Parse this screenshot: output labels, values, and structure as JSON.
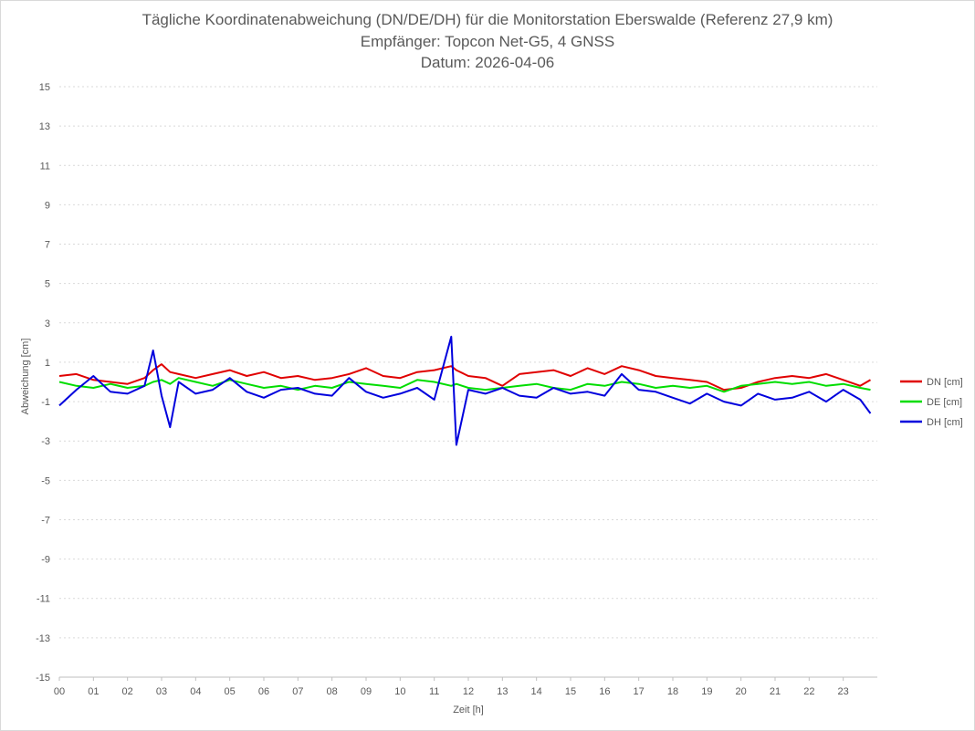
{
  "titles": {
    "line1": "Tägliche Koordinatenabweichung (DN/DE/DH) für die Monitorstation Eberswalde (Referenz 27,9 km)",
    "line2": "Empfänger: Topcon Net-G5, 4 GNSS",
    "line3": "Datum: 2026-04-06"
  },
  "chart_data": {
    "type": "line",
    "title": "Tägliche Koordinatenabweichung (DN/DE/DH) für die Monitorstation Eberswalde (Referenz 27,9 km)",
    "subtitle": [
      "Empfänger: Topcon Net-G5, 4 GNSS",
      "Datum: 2026-04-06"
    ],
    "xlabel": "Zeit [h]",
    "ylabel": "Abweichung [cm]",
    "xlim": [
      0,
      24
    ],
    "ylim": [
      -15,
      15
    ],
    "x_ticks": [
      "00",
      "01",
      "02",
      "03",
      "04",
      "05",
      "06",
      "07",
      "08",
      "09",
      "10",
      "11",
      "12",
      "13",
      "14",
      "15",
      "16",
      "17",
      "18",
      "19",
      "20",
      "21",
      "22",
      "23"
    ],
    "y_ticks": [
      15,
      13,
      11,
      9,
      7,
      5,
      3,
      1,
      -1,
      -3,
      -5,
      -7,
      -9,
      -11,
      -13,
      -15
    ],
    "grid": "horizontal dotted",
    "legend_position": "right",
    "x": [
      0,
      0.5,
      1,
      1.5,
      2,
      2.5,
      2.75,
      3,
      3.25,
      3.5,
      4,
      4.5,
      5,
      5.5,
      6,
      6.5,
      7,
      7.5,
      8,
      8.5,
      9,
      9.5,
      10,
      10.5,
      11,
      11.5,
      11.65,
      12,
      12.5,
      13,
      13.5,
      14,
      14.5,
      15,
      15.5,
      16,
      16.5,
      17,
      17.5,
      18,
      18.5,
      19,
      19.5,
      20,
      20.5,
      21,
      21.5,
      22,
      22.5,
      23,
      23.5,
      23.8
    ],
    "series": [
      {
        "name": "DN [cm]",
        "color": "#e00000",
        "values": [
          0.3,
          0.4,
          0.1,
          0.0,
          -0.1,
          0.2,
          0.6,
          0.9,
          0.5,
          0.4,
          0.2,
          0.4,
          0.6,
          0.3,
          0.5,
          0.2,
          0.3,
          0.1,
          0.2,
          0.4,
          0.7,
          0.3,
          0.2,
          0.5,
          0.6,
          0.8,
          0.6,
          0.3,
          0.2,
          -0.2,
          0.4,
          0.5,
          0.6,
          0.3,
          0.7,
          0.4,
          0.8,
          0.6,
          0.3,
          0.2,
          0.1,
          0.0,
          -0.4,
          -0.3,
          0.0,
          0.2,
          0.3,
          0.2,
          0.4,
          0.1,
          -0.2,
          0.1
        ]
      },
      {
        "name": "DE [cm]",
        "color": "#00dd00",
        "values": [
          0.0,
          -0.2,
          -0.3,
          -0.1,
          -0.3,
          -0.2,
          0.0,
          0.1,
          -0.1,
          0.2,
          0.0,
          -0.2,
          0.1,
          -0.1,
          -0.3,
          -0.2,
          -0.4,
          -0.2,
          -0.3,
          0.0,
          -0.1,
          -0.2,
          -0.3,
          0.1,
          0.0,
          -0.2,
          -0.1,
          -0.3,
          -0.4,
          -0.3,
          -0.2,
          -0.1,
          -0.3,
          -0.4,
          -0.1,
          -0.2,
          0.0,
          -0.1,
          -0.3,
          -0.2,
          -0.3,
          -0.2,
          -0.5,
          -0.2,
          -0.1,
          0.0,
          -0.1,
          0.0,
          -0.2,
          -0.1,
          -0.3,
          -0.4
        ]
      },
      {
        "name": "DH [cm]",
        "color": "#0000dd",
        "values": [
          -1.2,
          -0.4,
          0.3,
          -0.5,
          -0.6,
          -0.2,
          1.6,
          -0.7,
          -2.3,
          0.0,
          -0.6,
          -0.4,
          0.2,
          -0.5,
          -0.8,
          -0.4,
          -0.3,
          -0.6,
          -0.7,
          0.2,
          -0.5,
          -0.8,
          -0.6,
          -0.3,
          -0.9,
          2.3,
          -3.2,
          -0.4,
          -0.6,
          -0.3,
          -0.7,
          -0.8,
          -0.3,
          -0.6,
          -0.5,
          -0.7,
          0.4,
          -0.4,
          -0.5,
          -0.8,
          -1.1,
          -0.6,
          -1.0,
          -1.2,
          -0.6,
          -0.9,
          -0.8,
          -0.5,
          -1.0,
          -0.4,
          -0.9,
          -1.6
        ]
      }
    ]
  }
}
